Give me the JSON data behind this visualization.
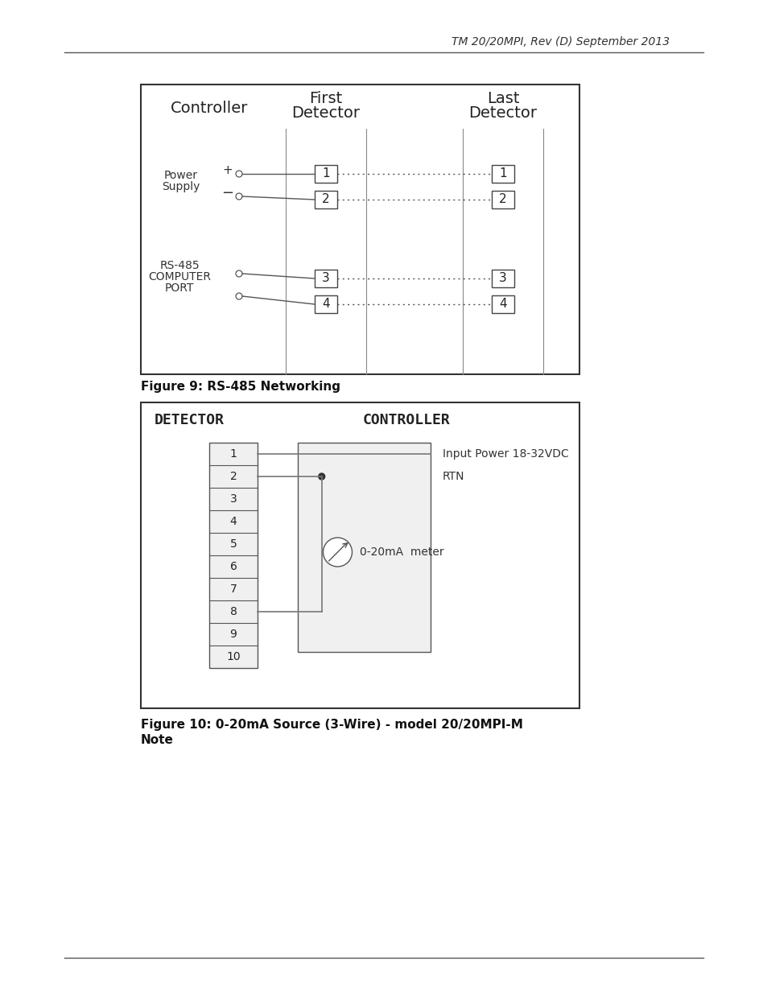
{
  "header_text": "TM 20/20MPI, Rev (D) September 2013",
  "fig9_caption": "Figure 9: RS-485 Networking",
  "fig10_caption": "Figure 10: 0-20mA Source (3-Wire) - model 20/20MPI-M",
  "fig10_caption2": "Note",
  "footer_line": true,
  "bg_color": "#ffffff",
  "diagram1": {
    "title_col1": "Controller",
    "title_col2_line1": "First",
    "title_col2_line2": "Detector",
    "title_col3_line1": "Last",
    "title_col3_line2": "Detector",
    "label1_line1": "Power",
    "label1_line2": "Supply",
    "label2_line1": "RS-485",
    "label2_line2": "COMPUTER",
    "label2_line3": "PORT",
    "terminals_first": [
      "1",
      "2",
      "3",
      "4"
    ],
    "terminals_last": [
      "1",
      "2",
      "3",
      "4"
    ]
  },
  "diagram2": {
    "label_left": "DETECTOR",
    "label_right": "CONTROLLER",
    "terminals": [
      "1",
      "2",
      "3",
      "4",
      "5",
      "6",
      "7",
      "8",
      "9",
      "10"
    ],
    "label_wire1": "Input Power 18-32VDC",
    "label_wire2": "RTN",
    "label_meter": "0-20mA  meter"
  }
}
